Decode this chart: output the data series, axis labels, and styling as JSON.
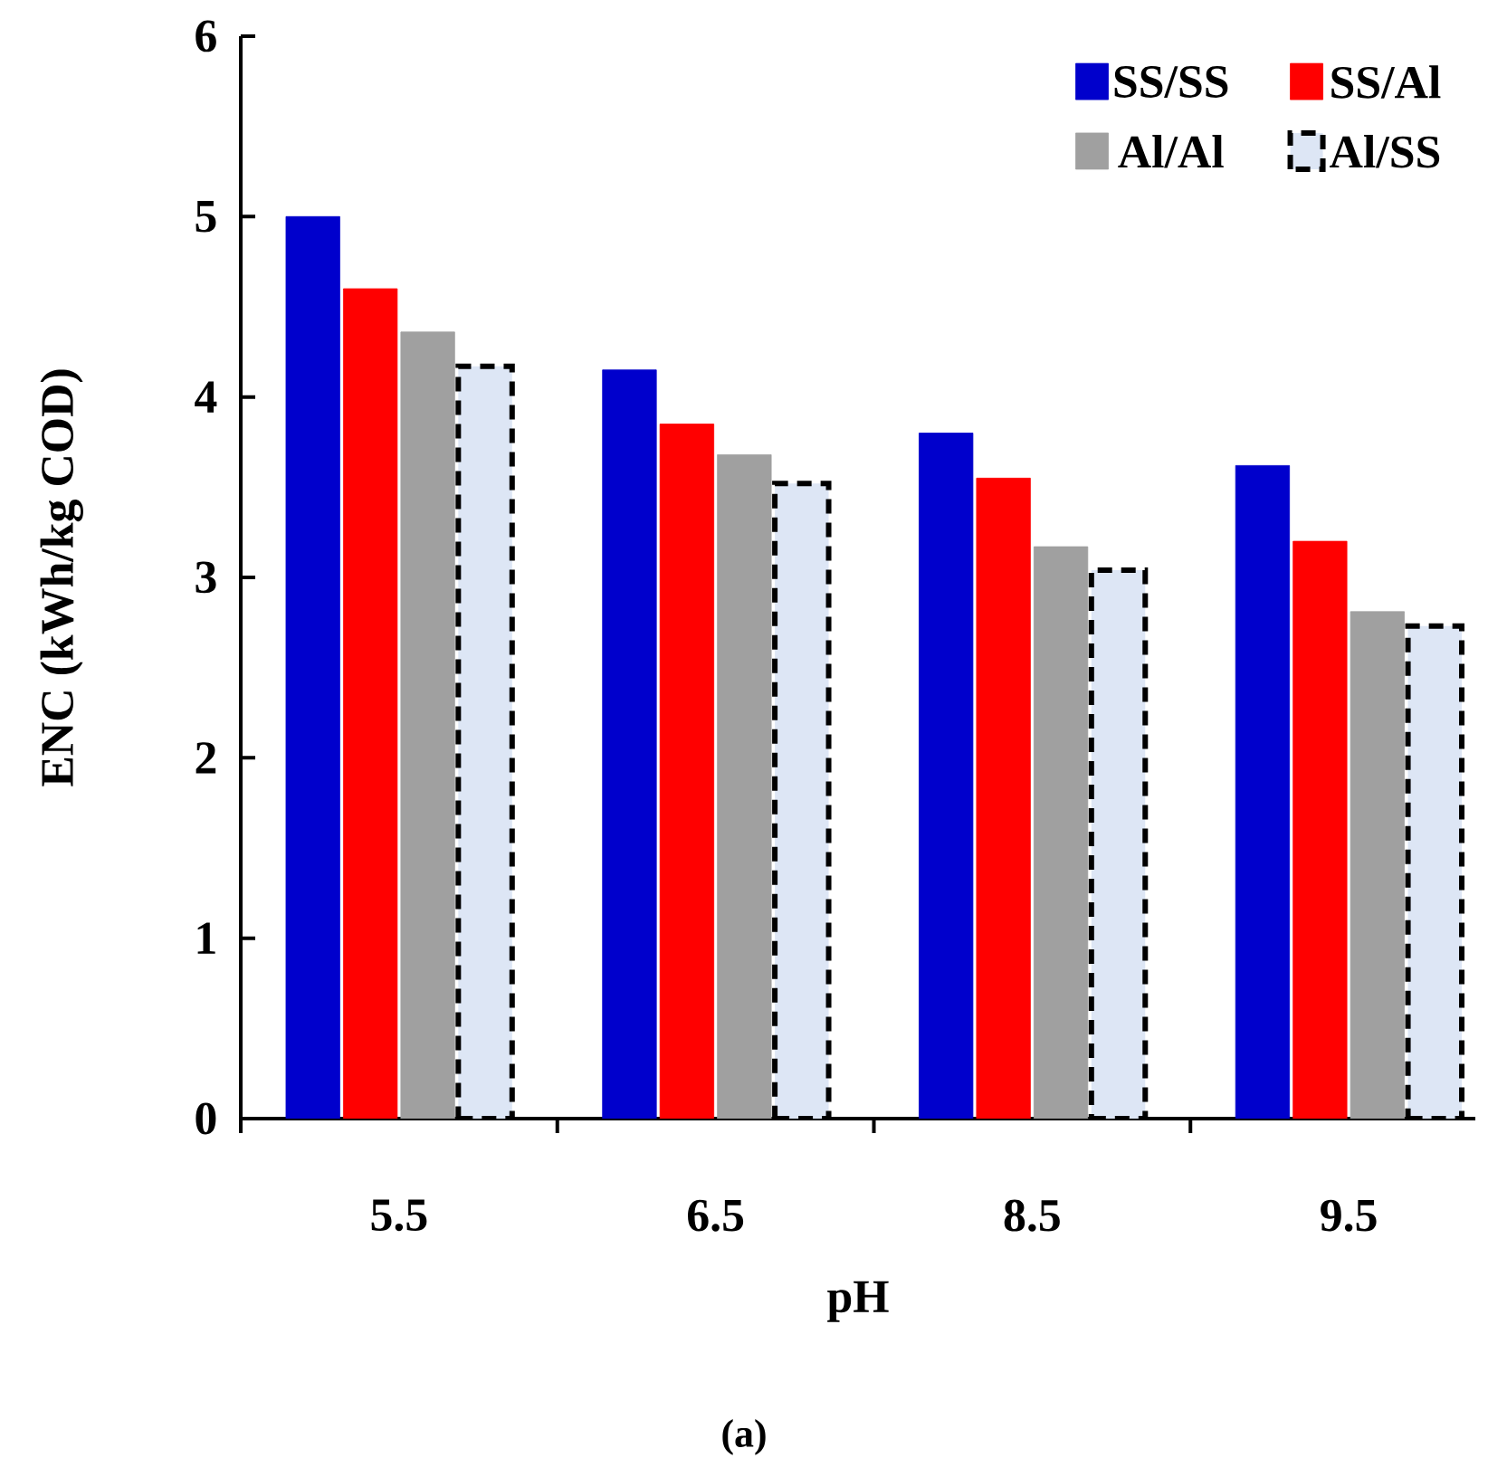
{
  "chart_data": {
    "type": "bar",
    "xlabel": "pH",
    "ylabel": "ENC (kWh/kg COD)",
    "categories": [
      "5.5",
      "6.5",
      "8.5",
      "9.5"
    ],
    "series": [
      {
        "name": "SS/SS",
        "color": "#0000cc",
        "values": [
          5.0,
          4.15,
          3.8,
          3.62
        ]
      },
      {
        "name": "SS/Al",
        "color": "#ff0000",
        "values": [
          4.6,
          3.85,
          3.55,
          3.2
        ]
      },
      {
        "name": "Al/Al",
        "color": "#a0a0a0",
        "values": [
          4.36,
          3.68,
          3.17,
          2.81
        ]
      },
      {
        "name": "Al/SS",
        "color": "#dde6f5",
        "values": [
          4.17,
          3.52,
          3.04,
          2.73
        ],
        "line_style": "dashed"
      }
    ],
    "ylim": [
      0,
      6
    ],
    "yticks": [
      0,
      1,
      2,
      3,
      4,
      5,
      6
    ],
    "grid": false,
    "legend": "top right",
    "annotations": [
      "(a)"
    ]
  }
}
